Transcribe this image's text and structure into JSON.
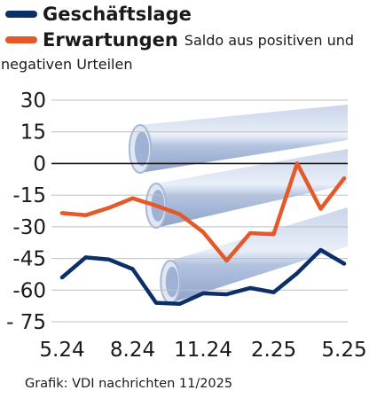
{
  "legend": {
    "series1_name": "Geschäftslage",
    "series2_name": "Erwartungen",
    "note_line1": "Saldo aus positiven und",
    "note_line2": "negativen Urteilen"
  },
  "footer": {
    "source": "Grafik: VDI nachrichten 11/2025"
  },
  "colors": {
    "geschaeftslage": "#0d2f67",
    "erwartungen": "#e3592a",
    "grid": "#bfbfbf",
    "zero_line": "#1a1a1a",
    "pipes": "#a7b8d8"
  },
  "chart_data": {
    "type": "line",
    "x": [
      "5.24",
      "6.24",
      "7.24",
      "8.24",
      "9.24",
      "10.24",
      "11.24",
      "12.24",
      "1.25",
      "2.25",
      "3.25",
      "4.25",
      "5.25"
    ],
    "x_tick_labels": [
      "5.24",
      "8.24",
      "11.24",
      "2.25",
      "5.25"
    ],
    "y_ticks": [
      30,
      15,
      0,
      -15,
      -30,
      -45,
      -60,
      -75
    ],
    "y_tick_labels": [
      "30",
      "15",
      "0",
      "-15",
      "-30",
      "-45",
      "-60",
      "- 75"
    ],
    "ylim": [
      -75,
      30
    ],
    "grid": true,
    "series": [
      {
        "name": "Geschäftslage",
        "color": "#0d2f67",
        "values": [
          -54,
          -44.5,
          -45.5,
          -50,
          -66,
          -66.5,
          -61.5,
          -62,
          -59,
          -61,
          -52,
          -41,
          -47.5
        ]
      },
      {
        "name": "Erwartungen",
        "color": "#e3592a",
        "values": [
          -23.5,
          -24.5,
          -21,
          -16.5,
          -20,
          -24,
          -32.5,
          -46,
          -33,
          -33.5,
          0,
          -21.5,
          -7
        ]
      }
    ]
  }
}
